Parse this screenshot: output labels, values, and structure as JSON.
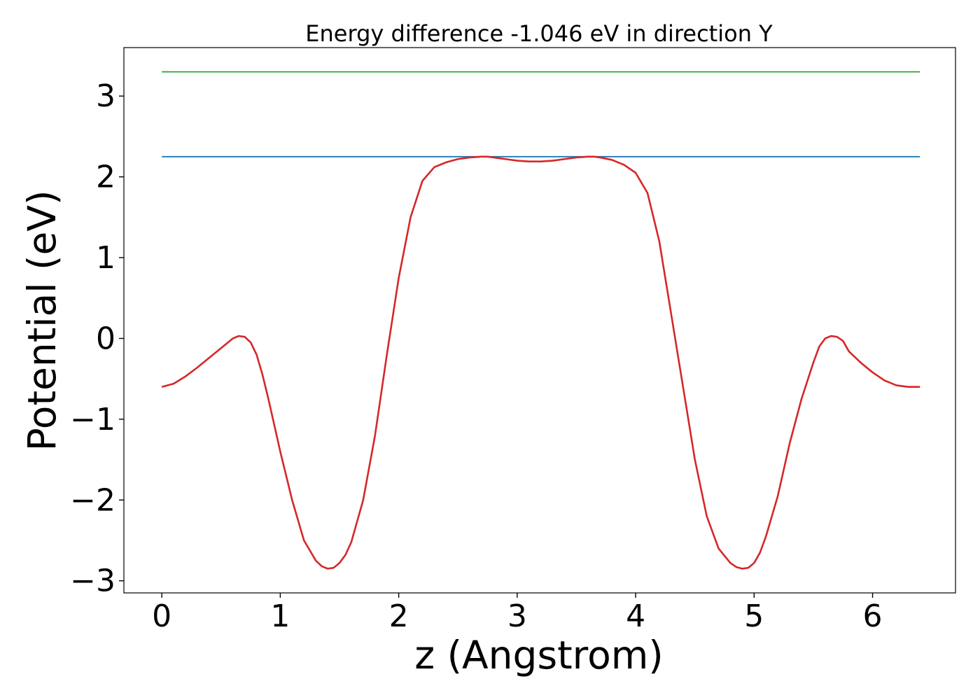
{
  "chart_data": {
    "type": "line",
    "title": "Energy difference -1.046 eV in direction Y",
    "xlabel": "z (Angstrom)",
    "ylabel": "Potential (eV)",
    "xlim": [
      -0.32,
      6.7
    ],
    "ylim": [
      -3.15,
      3.6
    ],
    "xticks": [
      0,
      1,
      2,
      3,
      4,
      5,
      6
    ],
    "xtick_labels": [
      "0",
      "1",
      "2",
      "3",
      "4",
      "5",
      "6"
    ],
    "yticks": [
      3,
      2,
      1,
      0,
      -1,
      -2,
      -3
    ],
    "ytick_labels": [
      "3",
      "2",
      "1",
      "0",
      "−1",
      "−2",
      "−3"
    ],
    "grid": false,
    "series": [
      {
        "color": "#2ca02c",
        "x": [
          0,
          6.4
        ],
        "y": [
          3.3,
          3.3
        ]
      },
      {
        "color": "#1f77b4",
        "x": [
          0,
          6.4
        ],
        "y": [
          2.25,
          2.25
        ]
      },
      {
        "color": "#d62728",
        "x": [
          0,
          0.1,
          0.2,
          0.3,
          0.4,
          0.5,
          0.6,
          0.65,
          0.7,
          0.75,
          0.8,
          0.85,
          0.9,
          1.0,
          1.1,
          1.2,
          1.3,
          1.35,
          1.4,
          1.45,
          1.5,
          1.55,
          1.6,
          1.7,
          1.8,
          1.9,
          2.0,
          2.1,
          2.2,
          2.3,
          2.4,
          2.5,
          2.6,
          2.7,
          2.75,
          2.8,
          2.9,
          3.0,
          3.1,
          3.2,
          3.3,
          3.4,
          3.5,
          3.6,
          3.65,
          3.7,
          3.8,
          3.9,
          4.0,
          4.1,
          4.2,
          4.3,
          4.4,
          4.5,
          4.6,
          4.7,
          4.8,
          4.85,
          4.9,
          4.95,
          5.0,
          5.05,
          5.1,
          5.2,
          5.3,
          5.4,
          5.5,
          5.55,
          5.6,
          5.65,
          5.7,
          5.75,
          5.8,
          5.9,
          6.0,
          6.1,
          6.2,
          6.3,
          6.4
        ],
        "y": [
          -0.6,
          -0.56,
          -0.47,
          -0.36,
          -0.24,
          -0.12,
          0.0,
          0.03,
          0.02,
          -0.05,
          -0.2,
          -0.45,
          -0.75,
          -1.4,
          -2.0,
          -2.5,
          -2.75,
          -2.82,
          -2.85,
          -2.84,
          -2.78,
          -2.68,
          -2.52,
          -2.0,
          -1.2,
          -0.2,
          0.75,
          1.5,
          1.95,
          2.12,
          2.18,
          2.22,
          2.24,
          2.25,
          2.25,
          2.24,
          2.22,
          2.2,
          2.19,
          2.19,
          2.2,
          2.22,
          2.24,
          2.25,
          2.25,
          2.24,
          2.21,
          2.15,
          2.05,
          1.8,
          1.2,
          0.3,
          -0.6,
          -1.5,
          -2.2,
          -2.6,
          -2.78,
          -2.83,
          -2.85,
          -2.84,
          -2.78,
          -2.65,
          -2.45,
          -1.95,
          -1.3,
          -0.75,
          -0.3,
          -0.1,
          0.0,
          0.03,
          0.02,
          -0.03,
          -0.16,
          -0.3,
          -0.42,
          -0.52,
          -0.58,
          -0.6,
          -0.6
        ]
      }
    ]
  }
}
